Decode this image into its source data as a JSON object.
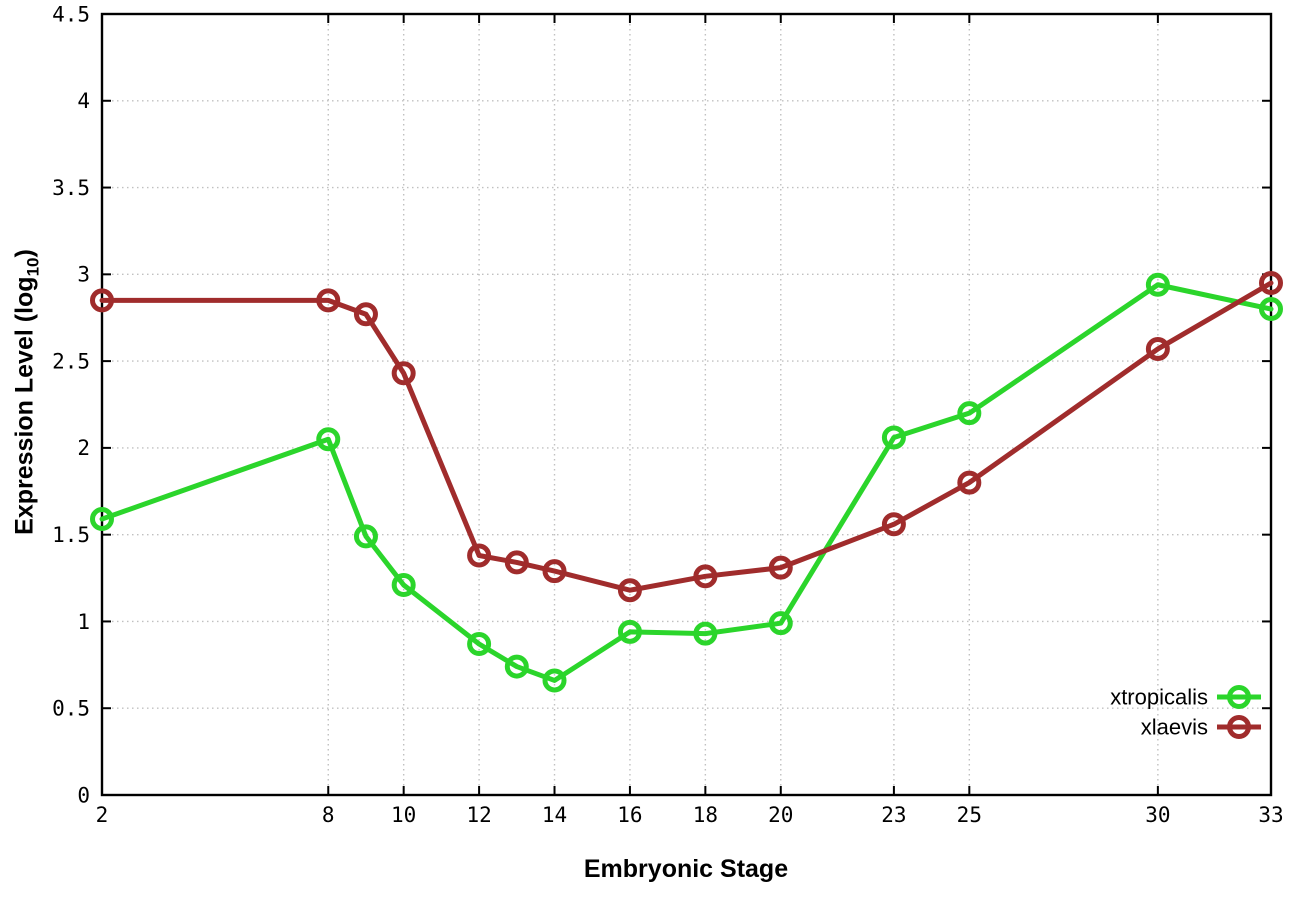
{
  "figure": {
    "xlabel": "Embryonic Stage",
    "ylabel_prefix": "Expression Level (log",
    "ylabel_sub": "10",
    "ylabel_suffix": ")"
  },
  "chart_data": {
    "type": "line",
    "title": "",
    "xlabel": "Embryonic Stage",
    "ylabel": "Expression Level (log10)",
    "x": [
      2,
      8,
      9,
      10,
      12,
      13,
      14,
      16,
      18,
      20,
      23,
      25,
      30,
      33
    ],
    "series": [
      {
        "name": "xtropicalis",
        "color": "#2bd52b",
        "values": [
          1.59,
          2.05,
          1.49,
          1.21,
          0.87,
          0.74,
          0.66,
          0.94,
          0.93,
          0.99,
          2.06,
          2.2,
          2.94,
          2.8
        ]
      },
      {
        "name": "xlaevis",
        "color": "#a02c2c",
        "values": [
          2.85,
          2.85,
          2.77,
          2.43,
          1.38,
          1.34,
          1.29,
          1.18,
          1.26,
          1.31,
          1.56,
          1.8,
          2.57,
          2.95
        ]
      }
    ],
    "xlim": [
      2,
      33
    ],
    "ylim": [
      0,
      4.5
    ],
    "xticks": [
      2,
      8,
      10,
      12,
      14,
      16,
      18,
      20,
      23,
      25,
      30,
      33
    ],
    "xtick_labels": [
      "2",
      "8",
      "10",
      "12",
      "14",
      "16",
      "18",
      "20",
      "23",
      "25",
      "30",
      "33"
    ],
    "yticks": [
      0,
      0.5,
      1,
      1.5,
      2,
      2.5,
      3,
      3.5,
      4,
      4.5
    ],
    "ytick_labels": [
      "0",
      "0.5",
      "1",
      "1.5",
      "2",
      "2.5",
      "3",
      "3.5",
      "4",
      "4.5"
    ],
    "grid": true,
    "grid_color": "#c0c0c0",
    "axis_color": "#000000",
    "marker": "open-circle",
    "legend_position": "bottom-right"
  }
}
